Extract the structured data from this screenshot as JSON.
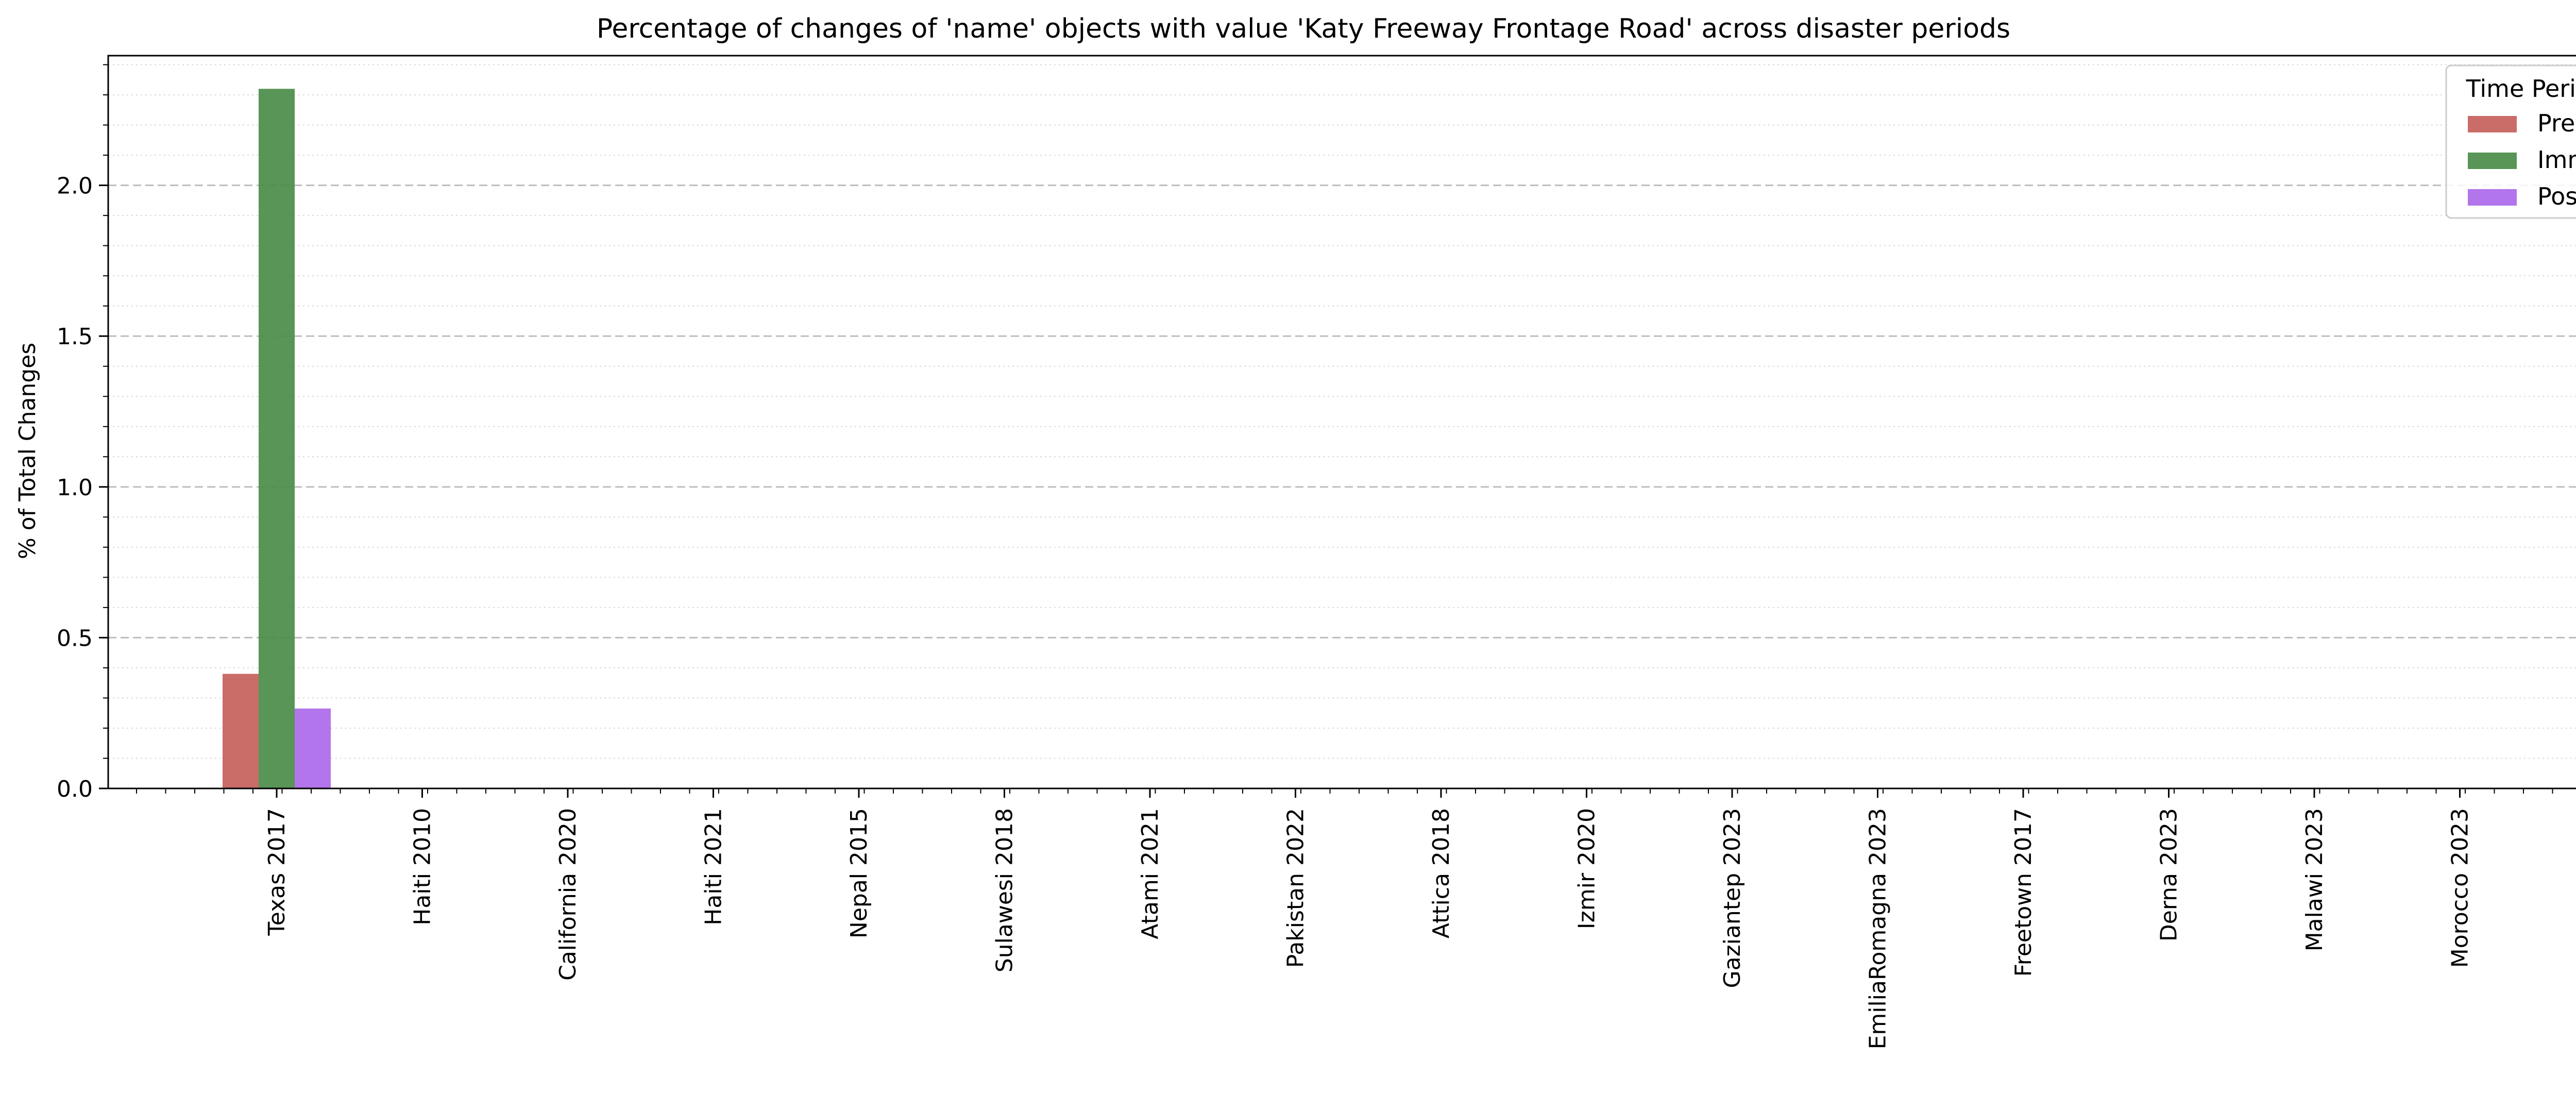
{
  "chart_data": {
    "type": "bar",
    "title": "Percentage of changes of 'name' objects with value 'Katy Freeway Frontage Road' across disaster periods",
    "xlabel": "",
    "ylabel": "% of Total Changes",
    "ylim": [
      0,
      2.43
    ],
    "yticks": [
      "0.0",
      "0.5",
      "1.0",
      "1.5",
      "2.0"
    ],
    "grid": true,
    "categories": [
      "Texas 2017",
      "Haiti 2010",
      "California 2020",
      "Haiti 2021",
      "Nepal 2015",
      "Sulawesi 2018",
      "Atami 2021",
      "Pakistan 2022",
      "Attica 2018",
      "Izmir 2020",
      "Gaziantep 2023",
      "EmiliaRomagna 2023",
      "Freetown 2017",
      "Derna 2023",
      "Malawi 2023",
      "Morocco 2023"
    ],
    "series": [
      {
        "name": "Pre",
        "color": "#c65f5b",
        "values": [
          0.38,
          0,
          0,
          0,
          0,
          0,
          0,
          0,
          0,
          0,
          0,
          0,
          0,
          0,
          0,
          0
        ]
      },
      {
        "name": "Imm",
        "color": "#4a8c48",
        "values": [
          2.32,
          0,
          0,
          0,
          0,
          0,
          0,
          0,
          0,
          0,
          0,
          0,
          0,
          0,
          0,
          0
        ]
      },
      {
        "name": "Post",
        "color": "#ac69ea",
        "values": [
          0.265,
          0,
          0,
          0,
          0,
          0,
          0,
          0,
          0,
          0,
          0,
          0,
          0,
          0,
          0,
          0
        ]
      }
    ],
    "legend": {
      "title": "Time Period",
      "placement": "top-right"
    }
  }
}
